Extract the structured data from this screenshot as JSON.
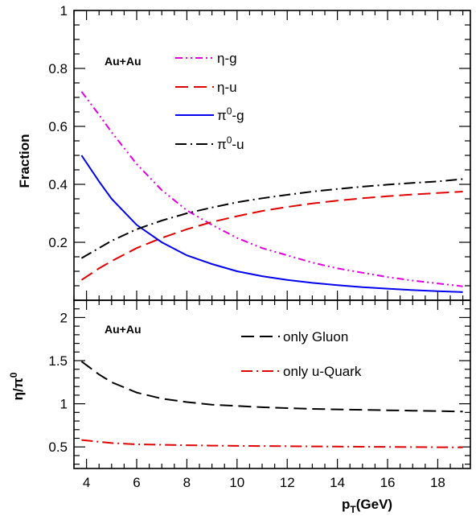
{
  "chart_data": [
    {
      "type": "line",
      "panel": "top",
      "annotation": "Au+Au",
      "ylabel": "Fraction",
      "xlim": [
        3.5,
        19.3
      ],
      "ylim": [
        0,
        1
      ],
      "x_ticks": [
        "4",
        "6",
        "8",
        "10",
        "12",
        "14",
        "16",
        "18"
      ],
      "y_ticks": [
        "0.2",
        "0.4",
        "0.6",
        "0.8",
        "1"
      ],
      "series": [
        {
          "name": "η-g",
          "color": "#e000e0",
          "style": "dash-dot-dot",
          "x": [
            3.8,
            4.5,
            5,
            6,
            7,
            8,
            9,
            10,
            11,
            12,
            13,
            14,
            15,
            16,
            17,
            18,
            19
          ],
          "y": [
            0.72,
            0.64,
            0.58,
            0.47,
            0.38,
            0.31,
            0.26,
            0.215,
            0.18,
            0.155,
            0.13,
            0.11,
            0.095,
            0.08,
            0.068,
            0.058,
            0.048
          ]
        },
        {
          "name": "η-u",
          "color": "#e00000",
          "style": "dash",
          "x": [
            3.8,
            4.5,
            5,
            6,
            7,
            8,
            9,
            10,
            11,
            12,
            13,
            14,
            15,
            16,
            17,
            18,
            19
          ],
          "y": [
            0.07,
            0.11,
            0.135,
            0.18,
            0.215,
            0.245,
            0.27,
            0.29,
            0.308,
            0.322,
            0.334,
            0.344,
            0.352,
            0.359,
            0.365,
            0.37,
            0.375
          ]
        },
        {
          "name": "π0-g",
          "color": "#0000ee",
          "style": "solid",
          "x": [
            3.8,
            4.5,
            5,
            6,
            7,
            8,
            9,
            10,
            11,
            12,
            13,
            14,
            15,
            16,
            17,
            18,
            19
          ],
          "y": [
            0.5,
            0.41,
            0.35,
            0.26,
            0.2,
            0.155,
            0.125,
            0.1,
            0.083,
            0.07,
            0.06,
            0.052,
            0.045,
            0.04,
            0.035,
            0.031,
            0.028
          ]
        },
        {
          "name": "π0-u",
          "color": "#000000",
          "style": "dash-dot",
          "x": [
            3.8,
            4.5,
            5,
            6,
            7,
            8,
            9,
            10,
            11,
            12,
            13,
            14,
            15,
            16,
            17,
            18,
            19
          ],
          "y": [
            0.145,
            0.18,
            0.205,
            0.245,
            0.275,
            0.3,
            0.32,
            0.338,
            0.352,
            0.364,
            0.375,
            0.384,
            0.392,
            0.399,
            0.405,
            0.41,
            0.418
          ]
        }
      ],
      "legend": [
        {
          "base": "η",
          "sup": "",
          "suffix": "-g",
          "series": 0
        },
        {
          "base": "η",
          "sup": "",
          "suffix": "-u",
          "series": 1
        },
        {
          "base": "π",
          "sup": "0",
          "suffix": "-g",
          "series": 2
        },
        {
          "base": "π",
          "sup": "0",
          "suffix": "-u",
          "series": 3
        }
      ]
    },
    {
      "type": "line",
      "panel": "bottom",
      "annotation": "Au+Au",
      "ylabel": "η/π0",
      "ylabel_parts": {
        "a": "η/π",
        "sup": "0"
      },
      "xlabel": "pT(GeV)",
      "xlabel_parts": {
        "a": "p",
        "sub": "T",
        "b": "(GeV)"
      },
      "xlim": [
        3.5,
        19.3
      ],
      "ylim": [
        0.25,
        2.2
      ],
      "x_ticks": [
        "4",
        "6",
        "8",
        "10",
        "12",
        "14",
        "16",
        "18"
      ],
      "y_ticks": [
        "0.5",
        "1",
        "1.5",
        "2"
      ],
      "series": [
        {
          "name": "only Gluon",
          "color": "#000000",
          "style": "dash",
          "x": [
            3.8,
            4.5,
            5,
            6,
            7,
            8,
            9,
            10,
            11,
            12,
            13,
            14,
            15,
            16,
            17,
            18,
            19
          ],
          "y": [
            1.49,
            1.34,
            1.25,
            1.13,
            1.06,
            1.02,
            0.99,
            0.975,
            0.96,
            0.95,
            0.94,
            0.935,
            0.93,
            0.925,
            0.92,
            0.915,
            0.91
          ]
        },
        {
          "name": "only u-Quark",
          "color": "#e00000",
          "style": "dash-dot",
          "x": [
            3.8,
            4.5,
            5,
            6,
            7,
            8,
            9,
            10,
            11,
            12,
            13,
            14,
            15,
            16,
            17,
            18,
            19
          ],
          "y": [
            0.58,
            0.56,
            0.545,
            0.53,
            0.525,
            0.52,
            0.515,
            0.512,
            0.51,
            0.508,
            0.506,
            0.504,
            0.502,
            0.5,
            0.498,
            0.496,
            0.494
          ]
        }
      ],
      "legend": [
        {
          "base": "only Gluon",
          "sup": "",
          "suffix": "",
          "series": 0
        },
        {
          "base": "only u-Quark",
          "sup": "",
          "suffix": "",
          "series": 1
        }
      ]
    }
  ]
}
